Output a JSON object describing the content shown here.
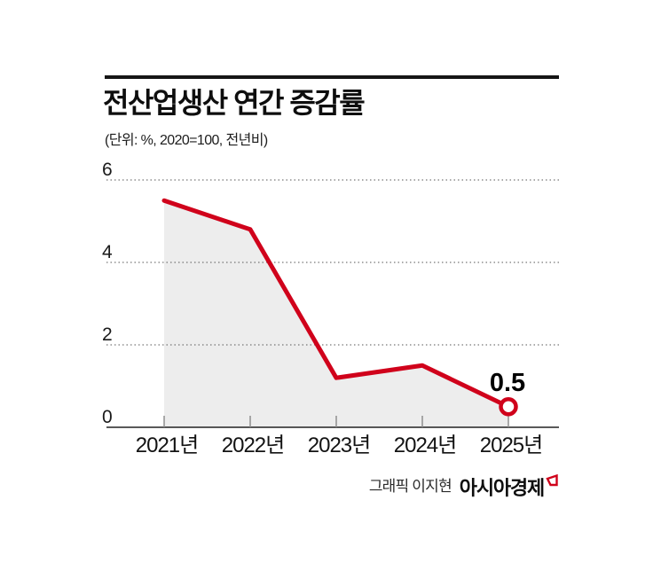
{
  "header": {
    "title": "전산업생산 연간 증감률",
    "subtitle": "(단위: %, 2020=100, 전년비)"
  },
  "chart_data": {
    "type": "line",
    "title": "전산업생산 연간 증감률",
    "unit_note": "(단위: %, 2020=100, 전년비)",
    "categories": [
      "2021년",
      "2022년",
      "2023년",
      "2024년",
      "2025년"
    ],
    "values": [
      5.5,
      4.8,
      1.2,
      1.5,
      0.5
    ],
    "ylim": [
      0,
      6
    ],
    "yticks": [
      0,
      2,
      4,
      6
    ],
    "grid": "horizontal-dotted",
    "legend": "none",
    "line_color": "#d0021b",
    "area_fill_color": "#ededed",
    "axis_color": "#222222",
    "grid_color": "#555555",
    "tick_color": "#888888",
    "marker_last_point": "open-circle",
    "last_point_label": "0.5"
  },
  "footer": {
    "credit": "그래픽 이지현",
    "brand": "아시아경제",
    "brand_color": "#d0021b"
  }
}
